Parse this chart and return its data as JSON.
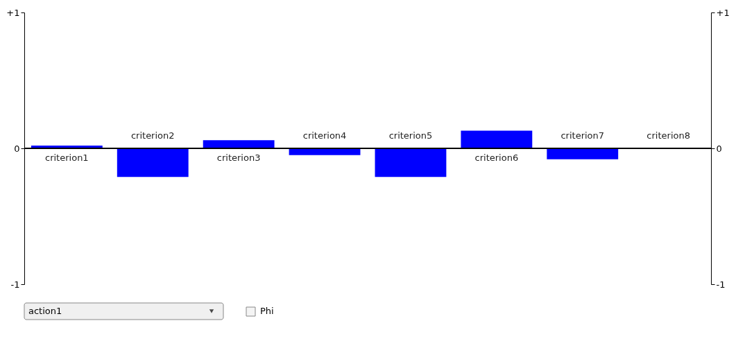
{
  "chart_data": {
    "type": "bar",
    "categories": [
      "criterion1",
      "criterion2",
      "criterion3",
      "criterion4",
      "criterion5",
      "criterion6",
      "criterion7",
      "criterion8"
    ],
    "values": [
      0.02,
      -0.21,
      0.06,
      -0.05,
      -0.21,
      0.13,
      -0.08,
      0
    ],
    "color": "#0000ff",
    "ylim": [
      -1,
      1
    ],
    "yticks": [
      {
        "value": 1,
        "label": "+1"
      },
      0,
      -1
    ],
    "y2lim": [
      -1,
      1
    ],
    "y2ticks": [
      {
        "value": 1,
        "label": "+1"
      },
      0,
      -1
    ],
    "grid": false,
    "tick_labels": "y",
    "annotations": [
      "action1",
      "Phi"
    ]
  }
}
